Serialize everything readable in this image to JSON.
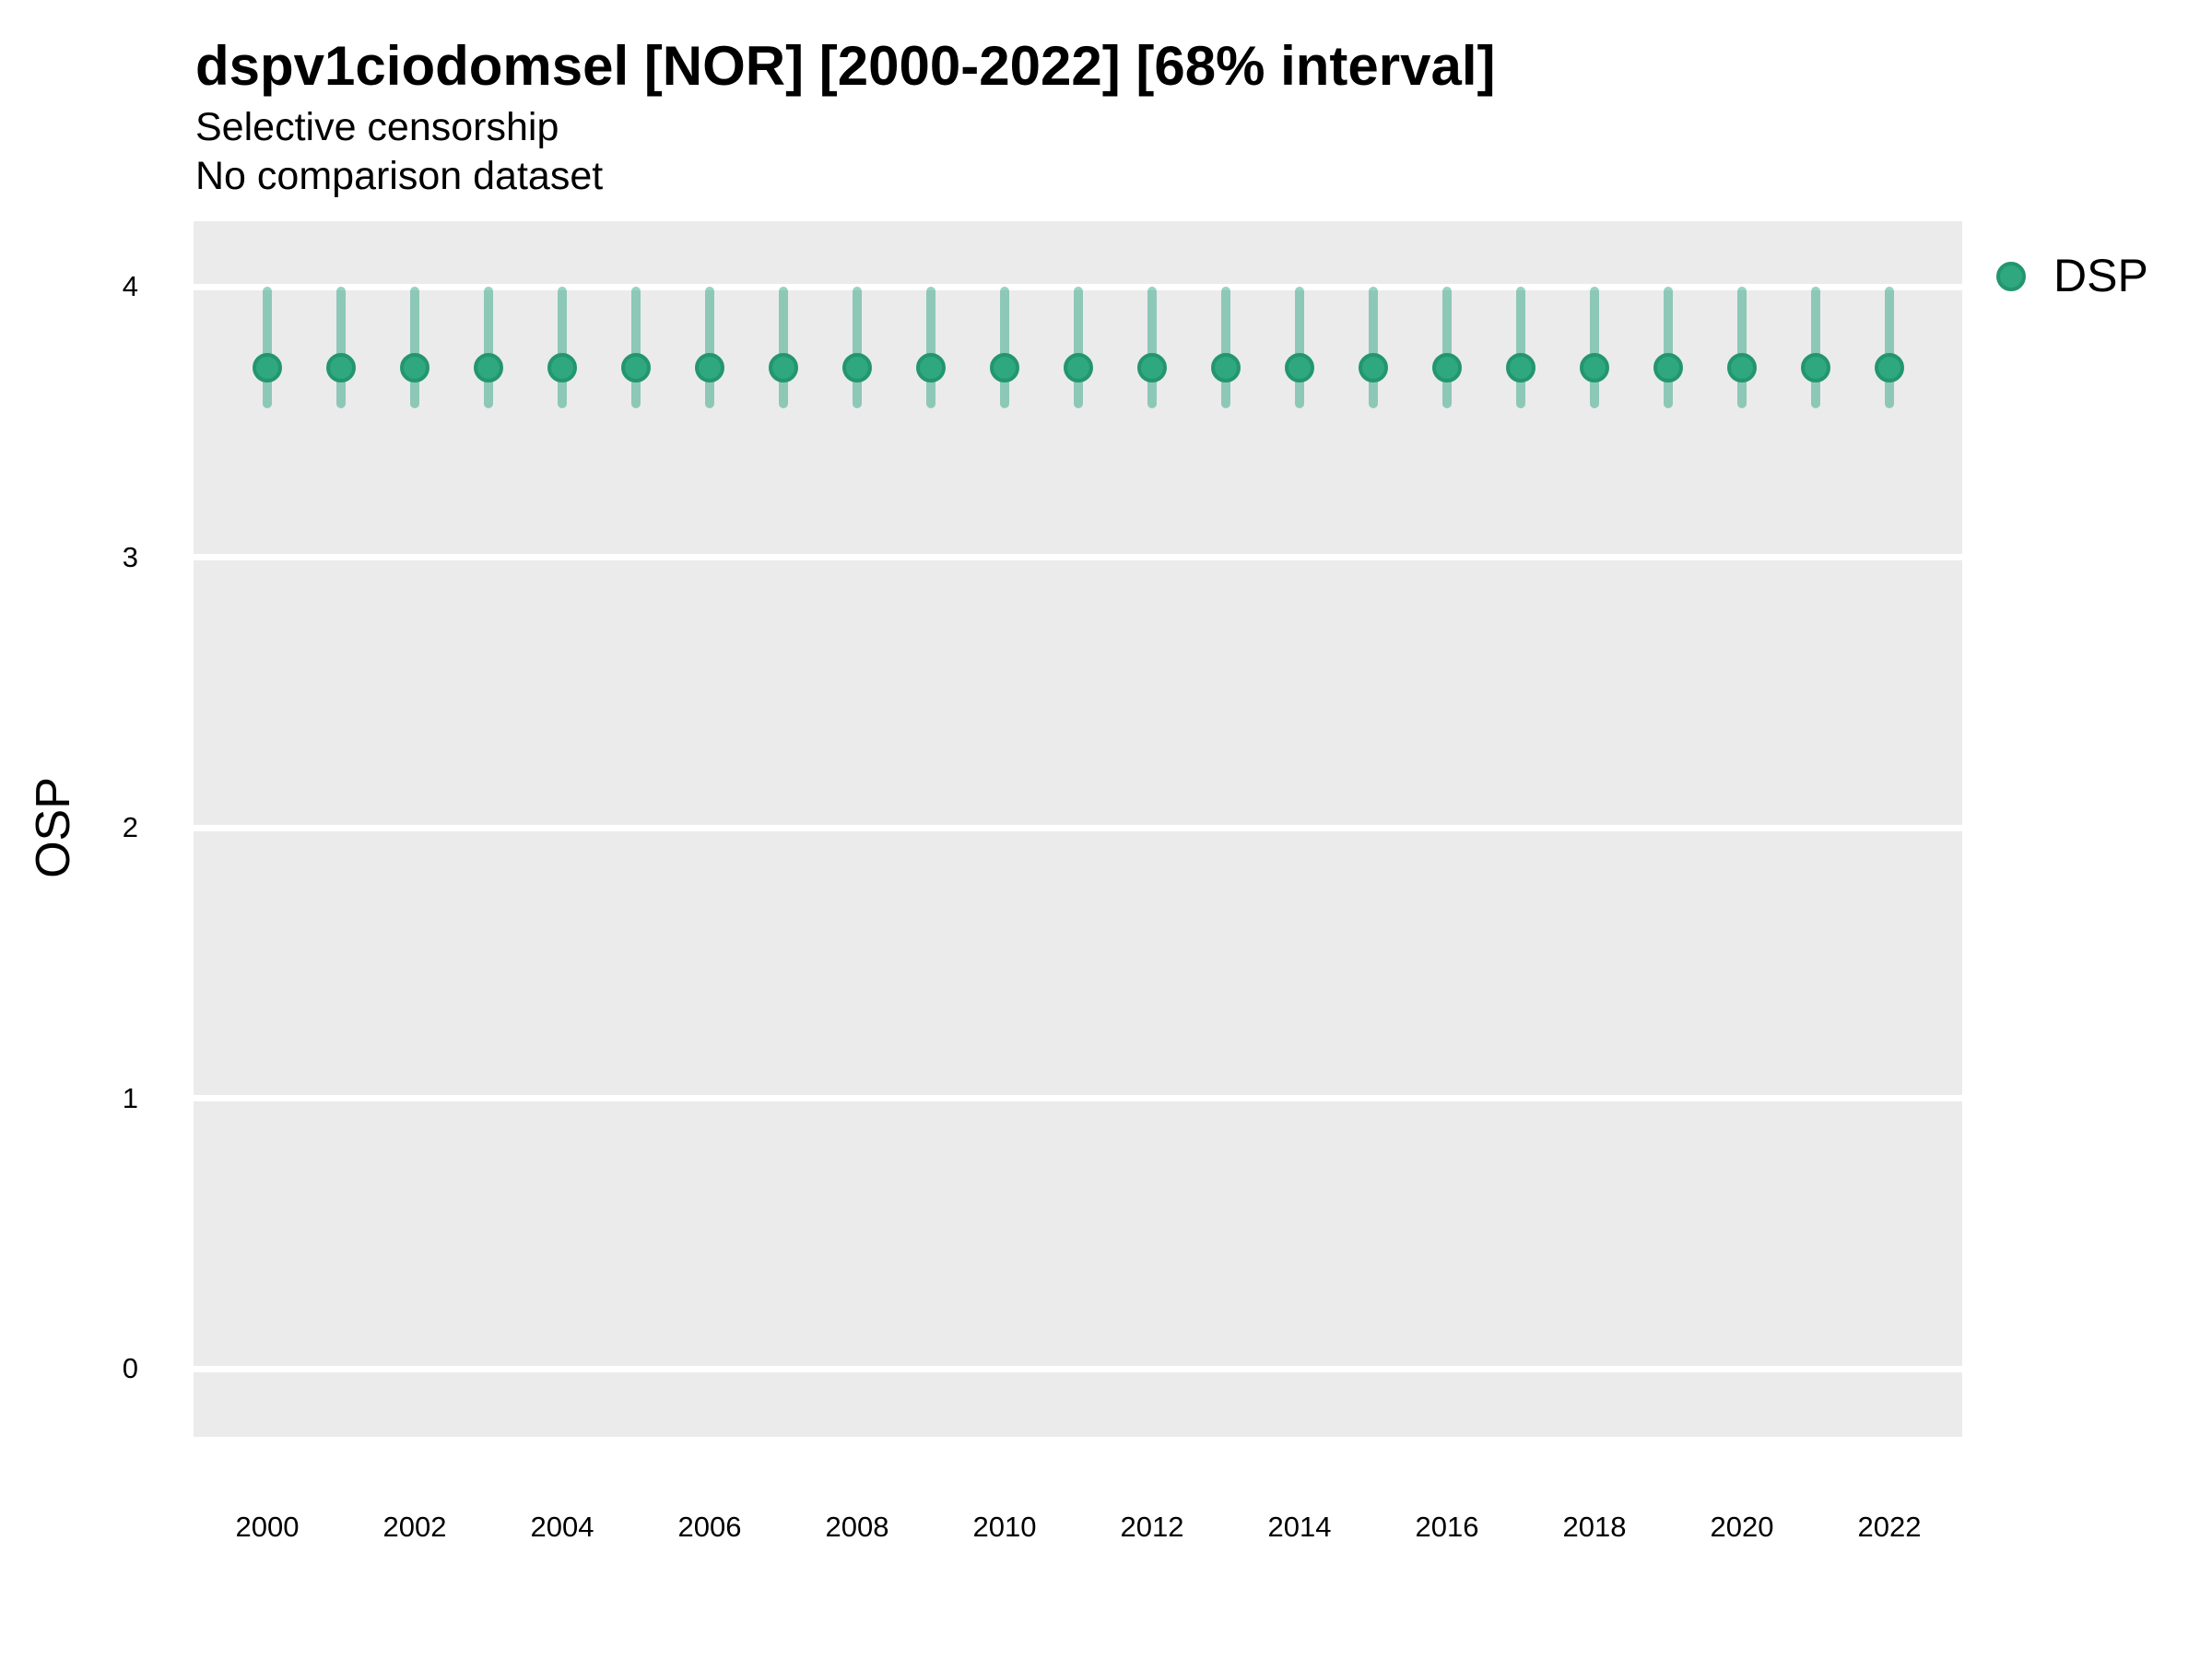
{
  "header": {
    "title": "dspv1ciodomsel [NOR] [2000-2022] [68% interval]",
    "subtitle_line1": "Selective censorship",
    "subtitle_line2": "No comparison dataset"
  },
  "axes": {
    "y_title": "OSP",
    "y_ticks": [
      0,
      1,
      2,
      3,
      4
    ],
    "x_tick_labels": [
      2000,
      2002,
      2004,
      2006,
      2008,
      2010,
      2012,
      2014,
      2016,
      2018,
      2020,
      2022
    ]
  },
  "legend": {
    "position": "right",
    "items": [
      {
        "label": "DSP",
        "marker": "circle-icon"
      }
    ]
  },
  "chart_data": {
    "type": "scatter",
    "subtype": "pointrange",
    "title": "dspv1ciodomsel [NOR] [2000-2022] [68% interval]",
    "subtitle": [
      "Selective censorship",
      "No comparison dataset"
    ],
    "xlabel": "",
    "ylabel": "OSP",
    "ylim": [
      -0.25,
      4.25
    ],
    "xlim": [
      1999,
      2023
    ],
    "grid": "horizontal-major-only",
    "legend_position": "right",
    "series": [
      {
        "name": "DSP",
        "x": [
          2000,
          2001,
          2002,
          2003,
          2004,
          2005,
          2006,
          2007,
          2008,
          2009,
          2010,
          2011,
          2012,
          2013,
          2014,
          2015,
          2016,
          2017,
          2018,
          2019,
          2020,
          2021,
          2022
        ],
        "estimate": [
          3.7,
          3.7,
          3.7,
          3.7,
          3.7,
          3.7,
          3.7,
          3.7,
          3.7,
          3.7,
          3.7,
          3.7,
          3.7,
          3.7,
          3.7,
          3.7,
          3.7,
          3.7,
          3.7,
          3.7,
          3.7,
          3.7,
          3.7
        ],
        "lower_68": [
          3.55,
          3.55,
          3.55,
          3.55,
          3.55,
          3.55,
          3.55,
          3.55,
          3.55,
          3.55,
          3.55,
          3.55,
          3.55,
          3.55,
          3.55,
          3.55,
          3.55,
          3.55,
          3.55,
          3.55,
          3.55,
          3.55,
          3.55
        ],
        "upper_68": [
          4.0,
          4.0,
          4.0,
          4.0,
          4.0,
          4.0,
          4.0,
          4.0,
          4.0,
          4.0,
          4.0,
          4.0,
          4.0,
          4.0,
          4.0,
          4.0,
          4.0,
          4.0,
          4.0,
          4.0,
          4.0,
          4.0,
          4.0
        ]
      }
    ]
  },
  "colors": {
    "point_fill": "#2FA87F",
    "point_border": "#23966E",
    "interval": "rgba(27,158,119,0.45)",
    "panel_background": "#EBEBEB",
    "gridline": "#FFFFFF",
    "text": "#000000"
  }
}
